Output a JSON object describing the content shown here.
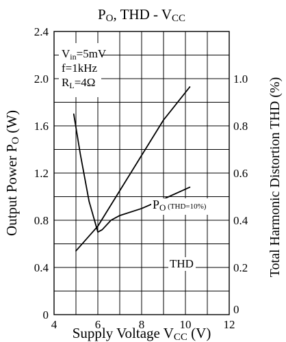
{
  "chart_data": {
    "type": "line",
    "title": {
      "base": "P",
      "sub": "O",
      "mid": ", THD - V",
      "sub2": "CC"
    },
    "xlabel": {
      "base": "Supply Voltage V",
      "sub": "CC",
      "tail": " (V)"
    },
    "ylabel_left": {
      "base": "Output Power P",
      "sub": "O",
      "tail": " (W)"
    },
    "ylabel_right": "Total Harmonic Distortion THD (%)",
    "xlim": [
      4,
      12
    ],
    "ylim_left": [
      0,
      2.4
    ],
    "ylim_right": [
      0,
      1.2
    ],
    "x_ticks": [
      "4",
      "6",
      "8",
      "10",
      "12"
    ],
    "y_left_ticks": [
      "0",
      "0.4",
      "0.8",
      "1.2",
      "1.6",
      "2.0",
      "2.4"
    ],
    "y_right_ticks": [
      "0",
      "0.2",
      "0.4",
      "0.6",
      "0.8",
      "1.0"
    ],
    "grid": true,
    "conditions": [
      {
        "base": "V",
        "sub": "in",
        "tail": "=5mV"
      },
      {
        "base": "f=1kHz",
        "sub": "",
        "tail": ""
      },
      {
        "base": "R",
        "sub": "L",
        "tail": "=4Ω"
      }
    ],
    "series": [
      {
        "label": {
          "base": "P",
          "sub": "O",
          "tail": " (THD=10%)"
        },
        "axis": "left",
        "x": [
          5.0,
          6.0,
          7.0,
          8.0,
          9.0,
          10.2
        ],
        "y": [
          0.54,
          0.75,
          1.05,
          1.35,
          1.65,
          1.93
        ]
      },
      {
        "label": {
          "base": "THD",
          "sub": "",
          "tail": ""
        },
        "axis": "right",
        "x": [
          4.9,
          5.2,
          5.6,
          6.0,
          6.2,
          6.6,
          7.0,
          8.0,
          9.0,
          10.2
        ],
        "y": [
          0.85,
          0.68,
          0.48,
          0.35,
          0.36,
          0.4,
          0.42,
          0.45,
          0.49,
          0.54
        ]
      }
    ]
  }
}
